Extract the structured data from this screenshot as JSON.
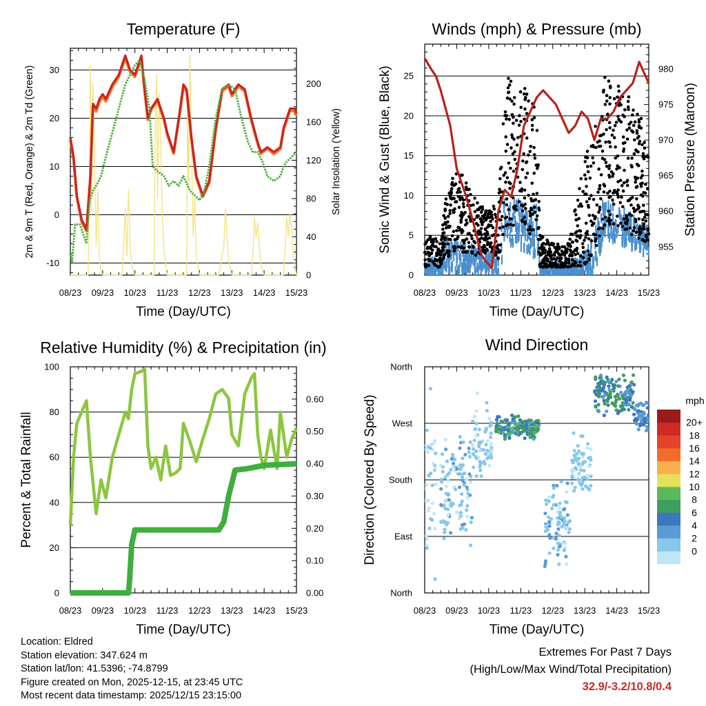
{
  "colors": {
    "temp_2m": "#cc2222",
    "temp_9m": "#f07a2a",
    "dewpoint": "#4caf3c",
    "insolation": "#f5e27a",
    "wind_gust": "#000000",
    "wind_sonic": "#4a90d0",
    "pressure": "#b5221c",
    "rh": "#8cc63f",
    "precip": "#3fae3f",
    "extremes": "#c8282a"
  },
  "speed_colors": [
    "#bfe6f7",
    "#88c6ea",
    "#5a9bd5",
    "#3b78bd",
    "#3e9e5d",
    "#5cb85c",
    "#e6e15a",
    "#f8b04a",
    "#f36d2a",
    "#e6432a",
    "#cf2a26",
    "#9b1b1b"
  ],
  "chart_data": [
    {
      "id": "temperature",
      "type": "line",
      "title": "Temperature (F)",
      "xlabel": "Time (Day/UTC)",
      "ylabel": "2m & 9m T (Red, Orange) & 2m Td (Green)",
      "ylabel_right": "Solar Insolation (Yellow)",
      "x_ticks": [
        "08/23",
        "09/23",
        "10/23",
        "11/23",
        "12/23",
        "13/23",
        "14/23",
        "15/23"
      ],
      "xlim": [
        0,
        7
      ],
      "ylim": [
        -12.5,
        34.5
      ],
      "y_ticks": [
        -10,
        0,
        10,
        20,
        30
      ],
      "ylim_right": [
        0,
        237
      ],
      "y_ticks_right": [
        0,
        40,
        80,
        120,
        160,
        200
      ],
      "series": [
        {
          "name": "2m T",
          "x": [
            0,
            0.1,
            0.2,
            0.35,
            0.5,
            0.62,
            0.7,
            0.8,
            0.9,
            1.0,
            1.1,
            1.3,
            1.5,
            1.7,
            1.85,
            2.0,
            2.2,
            2.3,
            2.4,
            2.5,
            2.7,
            2.9,
            3.0,
            3.2,
            3.4,
            3.5,
            3.6,
            3.75,
            3.9,
            4.1,
            4.3,
            4.5,
            4.7,
            4.9,
            5.0,
            5.2,
            5.4,
            5.6,
            5.8,
            5.9,
            6.1,
            6.3,
            6.5,
            6.6,
            6.8,
            6.95,
            7.0
          ],
          "values": [
            16,
            12,
            4,
            -1,
            -3,
            8,
            23,
            22,
            24,
            25,
            24,
            27,
            29,
            33,
            30,
            29,
            33,
            26,
            20,
            22,
            24,
            20,
            17,
            13,
            22,
            27,
            26,
            16,
            8,
            4,
            7,
            18,
            26,
            27,
            25,
            27,
            26,
            20,
            15,
            13,
            14,
            13,
            14,
            18,
            22,
            22,
            21
          ]
        },
        {
          "name": "9m T",
          "x": [
            0,
            0.1,
            0.2,
            0.35,
            0.5,
            0.62,
            0.7,
            0.8,
            0.9,
            1.0,
            1.1,
            1.3,
            1.5,
            1.7,
            1.85,
            2.0,
            2.2,
            2.3,
            2.4,
            2.5,
            2.7,
            2.9,
            3.0,
            3.2,
            3.4,
            3.5,
            3.6,
            3.75,
            3.9,
            4.1,
            4.3,
            4.5,
            4.7,
            4.9,
            5.0,
            5.2,
            5.4,
            5.6,
            5.8,
            5.9,
            6.1,
            6.3,
            6.5,
            6.6,
            6.8,
            6.95,
            7.0
          ],
          "values": [
            15.5,
            11.5,
            3.6,
            -1.4,
            -3.4,
            7.6,
            22.4,
            21.4,
            23.4,
            24.4,
            23.5,
            26.5,
            28.6,
            32.4,
            29.6,
            28.6,
            32.4,
            25.6,
            19.7,
            21.7,
            23.6,
            19.7,
            16.6,
            12.7,
            21.6,
            26.5,
            25.6,
            15.7,
            7.7,
            3.7,
            6.7,
            17.6,
            25.6,
            26.6,
            24.6,
            26.6,
            25.6,
            19.6,
            14.7,
            12.7,
            13.7,
            12.6,
            13.6,
            17.6,
            21.6,
            21.4,
            20.5
          ]
        },
        {
          "name": "2m Td",
          "x": [
            0,
            0.05,
            0.15,
            0.3,
            0.4,
            0.5,
            0.6,
            0.7,
            0.8,
            0.95,
            1.1,
            1.3,
            1.5,
            1.7,
            1.85,
            2.0,
            2.15,
            2.3,
            2.45,
            2.55,
            2.7,
            2.9,
            3.05,
            3.2,
            3.35,
            3.5,
            3.7,
            3.85,
            4.0,
            4.15,
            4.3,
            4.5,
            4.7,
            4.9,
            5.1,
            5.3,
            5.5,
            5.65,
            5.8,
            5.95,
            6.1,
            6.3,
            6.5,
            6.6,
            6.7,
            6.85,
            7.0
          ],
          "values": [
            -8,
            -10,
            -2,
            -2,
            -4,
            -6,
            3,
            5,
            6,
            8,
            12,
            17,
            22,
            27,
            29,
            31,
            32,
            28,
            22,
            10,
            9,
            8,
            6,
            7,
            6,
            8,
            5,
            4,
            3,
            5,
            10,
            20,
            26,
            27,
            26,
            20,
            15,
            13,
            13,
            11,
            8,
            7,
            8,
            10,
            11,
            12,
            13
          ]
        },
        {
          "name": "Solar Insolation",
          "axis": "right",
          "x": [
            0,
            0.55,
            0.6,
            0.62,
            0.65,
            0.7,
            0.75,
            0.8,
            0.85,
            0.9,
            0.95,
            1.0,
            1.6,
            1.65,
            1.7,
            1.75,
            1.8,
            1.85,
            1.9,
            2.0,
            2.6,
            2.63,
            2.67,
            2.7,
            2.75,
            2.8,
            2.85,
            2.9,
            3.0,
            3.6,
            3.63,
            3.67,
            3.7,
            3.75,
            3.8,
            3.85,
            3.9,
            4.0,
            4.6,
            4.65,
            4.7,
            4.75,
            4.8,
            4.85,
            4.9,
            5.0,
            5.6,
            5.65,
            5.7,
            5.75,
            5.8,
            5.85,
            5.9,
            6.0,
            6.6,
            6.65,
            6.7,
            6.75,
            6.8,
            6.85,
            6.9,
            7.0
          ],
          "values": [
            0,
            0,
            120,
            220,
            60,
            200,
            120,
            30,
            90,
            15,
            5,
            0,
            0,
            30,
            70,
            20,
            90,
            30,
            10,
            0,
            0,
            150,
            210,
            80,
            190,
            140,
            60,
            25,
            0,
            0,
            180,
            90,
            230,
            140,
            40,
            80,
            20,
            0,
            0,
            10,
            20,
            30,
            70,
            40,
            15,
            0,
            0,
            20,
            60,
            40,
            55,
            30,
            10,
            0,
            0,
            30,
            60,
            40,
            65,
            50,
            20,
            0
          ]
        }
      ]
    },
    {
      "id": "winds",
      "type": "scatter",
      "title": "Winds (mph) & Pressure (mb)",
      "xlabel": "Time (Day/UTC)",
      "ylabel": "Sonic Wind & Gust (Blue, Black)",
      "ylabel_right": "Station Pressure (Maroon)",
      "x_ticks": [
        "08/23",
        "09/23",
        "10/23",
        "11/23",
        "12/23",
        "13/23",
        "14/23",
        "15/23"
      ],
      "xlim": [
        0,
        7
      ],
      "ylim": [
        0,
        29
      ],
      "y_ticks": [
        0,
        5,
        10,
        15,
        20,
        25
      ],
      "ylim_right": [
        951,
        983.5
      ],
      "y_ticks_right": [
        955,
        960,
        965,
        970,
        975,
        980
      ],
      "gust_envelope": {
        "x": [
          0,
          0.5,
          0.6,
          1.0,
          1.5,
          2.0,
          2.3,
          2.5,
          3.0,
          3.5,
          3.6,
          4.0,
          4.5,
          5.0,
          5.3,
          5.6,
          6.0,
          6.5,
          7.0
        ],
        "low": [
          1,
          1,
          2,
          3,
          2,
          3,
          2,
          6,
          6,
          4,
          1,
          1,
          1,
          1,
          3,
          6,
          6,
          5,
          4
        ],
        "high": [
          6,
          4,
          9,
          14,
          10,
          8,
          10,
          26,
          24,
          22,
          5,
          4,
          4,
          15,
          18,
          25,
          24,
          22,
          18
        ]
      },
      "sonic_envelope": {
        "x": [
          0,
          0.5,
          0.6,
          1.0,
          1.5,
          2.0,
          2.3,
          2.5,
          3.0,
          3.5,
          3.6,
          4.0,
          4.5,
          5.0,
          5.3,
          5.6,
          6.0,
          6.5,
          7.0
        ],
        "low": [
          0,
          0,
          1,
          1,
          1,
          1,
          0.5,
          4,
          4,
          3,
          0.5,
          0.5,
          0.5,
          0.5,
          1,
          5,
          5,
          4,
          3
        ],
        "high": [
          3,
          2,
          5,
          5,
          4,
          3,
          4,
          10,
          10,
          9,
          2,
          2,
          2,
          3,
          6,
          10,
          9,
          8,
          6
        ]
      },
      "series": [
        {
          "name": "Station Pressure",
          "axis": "right",
          "x": [
            0,
            0.2,
            0.35,
            0.5,
            0.8,
            1.0,
            1.3,
            1.6,
            1.75,
            1.9,
            2.1,
            2.3,
            2.5,
            2.7,
            2.9,
            3.1,
            3.3,
            3.5,
            3.7,
            3.9,
            4.1,
            4.3,
            4.5,
            4.7,
            4.9,
            5.1,
            5.3,
            5.5,
            5.7,
            5.9,
            6.1,
            6.3,
            6.5,
            6.7,
            6.8,
            6.9,
            7.0
          ],
          "values": [
            981.5,
            980,
            979,
            977,
            972,
            966,
            962,
            957,
            954,
            953,
            952,
            960,
            963,
            962,
            966,
            972,
            974,
            976,
            977,
            976,
            975,
            973,
            971,
            972,
            974,
            973,
            970,
            973,
            973,
            974,
            976,
            977,
            978,
            981,
            980,
            979,
            978
          ]
        }
      ]
    },
    {
      "id": "humidity",
      "type": "line",
      "title": "Relative Humidity (%) & Precipitation (in)",
      "xlabel": "Time (Day/UTC)",
      "ylabel": "Percent & Total Rainfall",
      "x_ticks": [
        "08/23",
        "09/23",
        "10/23",
        "11/23",
        "12/23",
        "13/23",
        "14/23",
        "15/23"
      ],
      "xlim": [
        0,
        7
      ],
      "ylim": [
        0,
        100
      ],
      "y_ticks": [
        0,
        20,
        40,
        60,
        80,
        100
      ],
      "ylim_right": [
        0,
        0.7
      ],
      "y_ticks_right": [
        0.0,
        0.1,
        0.2,
        0.3,
        0.4,
        0.5,
        0.6
      ],
      "y_tick_labels_right": [
        "0.00",
        "0.10",
        "0.20",
        "0.30",
        "0.40",
        "0.50",
        "0.60"
      ],
      "series": [
        {
          "name": "Relative Humidity",
          "x": [
            0,
            0.1,
            0.2,
            0.35,
            0.5,
            0.62,
            0.8,
            0.95,
            1.1,
            1.3,
            1.5,
            1.7,
            1.8,
            1.9,
            2.0,
            2.2,
            2.3,
            2.4,
            2.5,
            2.65,
            2.8,
            2.95,
            3.1,
            3.25,
            3.4,
            3.5,
            3.7,
            3.9,
            4.1,
            4.3,
            4.5,
            4.7,
            4.9,
            5.0,
            5.2,
            5.4,
            5.6,
            5.7,
            5.8,
            5.9,
            6.0,
            6.2,
            6.4,
            6.5,
            6.7,
            6.85,
            7.0
          ],
          "values": [
            30,
            60,
            75,
            80,
            85,
            60,
            35,
            50,
            42,
            60,
            70,
            80,
            77,
            90,
            97,
            98,
            99,
            65,
            55,
            60,
            50,
            65,
            52,
            53,
            55,
            75,
            67,
            58,
            68,
            77,
            88,
            90,
            86,
            70,
            65,
            88,
            95,
            97,
            70,
            60,
            55,
            72,
            55,
            80,
            60,
            68,
            73
          ]
        },
        {
          "name": "Total Precipitation",
          "axis": "right",
          "x": [
            0,
            1.8,
            1.83,
            1.9,
            2.0,
            3.0,
            4.0,
            4.6,
            4.75,
            4.9,
            5.1,
            5.5,
            6.0,
            7.0
          ],
          "values": [
            0,
            0,
            0.03,
            0.15,
            0.195,
            0.195,
            0.195,
            0.195,
            0.22,
            0.3,
            0.38,
            0.385,
            0.395,
            0.4
          ]
        }
      ]
    },
    {
      "id": "direction",
      "type": "scatter",
      "title": "Wind Direction",
      "xlabel": "Time (Day/UTC)",
      "ylabel": "Direction (Colored By Speed)",
      "x_ticks": [
        "08/23",
        "09/23",
        "10/23",
        "11/23",
        "12/23",
        "13/23",
        "14/23",
        "15/23"
      ],
      "xlim": [
        0,
        7
      ],
      "ylim": [
        0,
        360
      ],
      "y_ticks": [
        0,
        90,
        180,
        270,
        360
      ],
      "y_tick_labels": [
        "North",
        "East",
        "South",
        "West",
        "North"
      ],
      "colorbar_unit": "mph",
      "colorbar_labels": [
        "0",
        "2",
        "4",
        "6",
        "8",
        "10",
        "12",
        "14",
        "16",
        "18",
        "20+"
      ],
      "clusters": [
        {
          "x": [
            0,
            0.35
          ],
          "dir": [
            0,
            360
          ],
          "speed": [
            0,
            1.5
          ]
        },
        {
          "x": [
            0.5,
            1.5
          ],
          "dir": [
            70,
            260
          ],
          "speed": [
            0.5,
            4
          ]
        },
        {
          "x": [
            1.5,
            2.1
          ],
          "dir": [
            160,
            330
          ],
          "speed": [
            0.5,
            3
          ]
        },
        {
          "x": [
            2.2,
            3.6
          ],
          "dir": [
            240,
            285
          ],
          "speed": [
            4,
            10
          ]
        },
        {
          "x": [
            3.75,
            4.55
          ],
          "dir": [
            30,
            190
          ],
          "speed": [
            0.5,
            4
          ]
        },
        {
          "x": [
            4.6,
            5.2
          ],
          "dir": [
            150,
            260
          ],
          "speed": [
            0.5,
            3
          ]
        },
        {
          "x": [
            5.3,
            6.55
          ],
          "dir": [
            280,
            350
          ],
          "speed": [
            4,
            9
          ]
        },
        {
          "x": [
            6.55,
            7.0
          ],
          "dir": [
            250,
            310
          ],
          "speed": [
            3,
            6
          ]
        }
      ]
    }
  ],
  "info": {
    "location": "Location: Eldred",
    "elevation": "Station elevation: 347.624 m",
    "latlon": "Station lat/lon: 41.5396; -74.8799",
    "created": "Figure created on Mon, 2025-12-15, at 23:45 UTC",
    "recent": "Most recent data timestamp: 2025/12/15 23:15:00"
  },
  "extremes": {
    "title": "Extremes For Past 7 Days",
    "subtitle": "(High/Low/Max Wind/Total Precipitation)",
    "values": "32.9/-3.2/10.8/0.4"
  }
}
